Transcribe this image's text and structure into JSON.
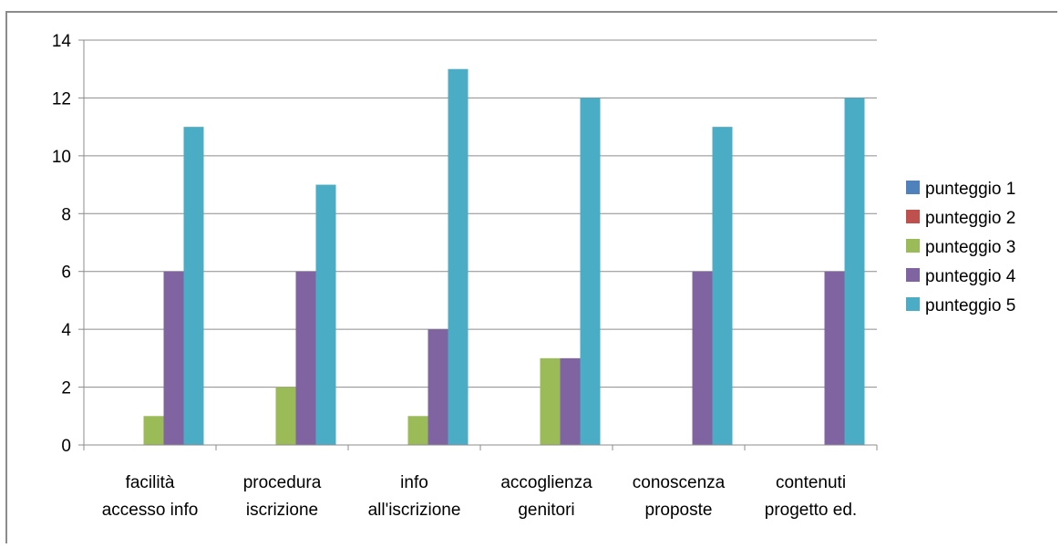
{
  "chart_data": {
    "type": "bar",
    "title": "",
    "xlabel": "",
    "ylabel": "",
    "ylim": [
      0,
      14
    ],
    "yticks": [
      0,
      2,
      4,
      6,
      8,
      10,
      12,
      14
    ],
    "grid": true,
    "legend_position": "right",
    "categories": [
      [
        "facilità",
        "accesso info"
      ],
      [
        "procedura",
        "iscrizione"
      ],
      [
        "info",
        "all'iscrizione"
      ],
      [
        "accoglienza",
        "genitori"
      ],
      [
        "conoscenza",
        "proposte"
      ],
      [
        "contenuti",
        "progetto ed."
      ]
    ],
    "series": [
      {
        "name": "punteggio 1",
        "color": "#4f81bd",
        "values": [
          0,
          0,
          0,
          0,
          0,
          0
        ]
      },
      {
        "name": "punteggio 2",
        "color": "#c0504d",
        "values": [
          0,
          0,
          0,
          0,
          0,
          0
        ]
      },
      {
        "name": "punteggio 3",
        "color": "#9bbb59",
        "values": [
          1,
          2,
          1,
          3,
          0,
          0
        ]
      },
      {
        "name": "punteggio 4",
        "color": "#8064a2",
        "values": [
          6,
          6,
          4,
          3,
          6,
          6
        ]
      },
      {
        "name": "punteggio 5",
        "color": "#4bacc6",
        "values": [
          11,
          9,
          13,
          12,
          11,
          12
        ]
      }
    ]
  }
}
